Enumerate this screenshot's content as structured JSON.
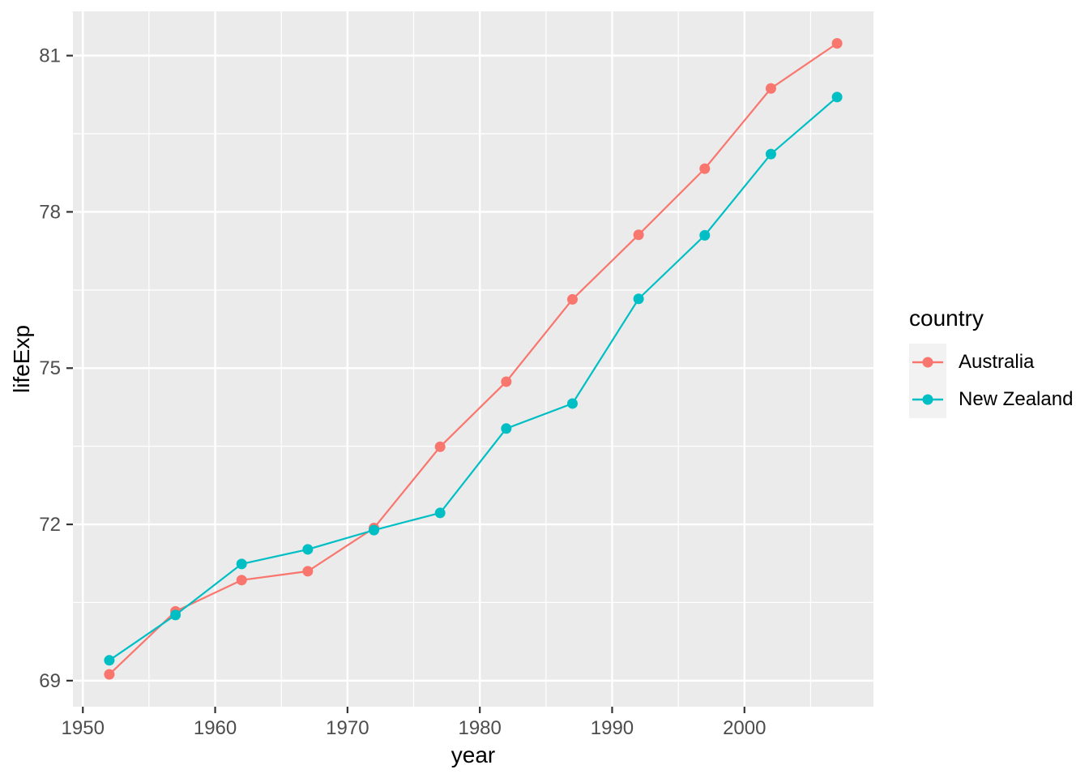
{
  "chart_data": {
    "type": "line",
    "title": "",
    "xlabel": "year",
    "ylabel": "lifeExp",
    "x": [
      1952,
      1957,
      1962,
      1967,
      1972,
      1977,
      1982,
      1987,
      1992,
      1997,
      2002,
      2007
    ],
    "series": [
      {
        "name": "Australia",
        "color": "#F8766D",
        "values": [
          69.12,
          70.33,
          70.93,
          71.1,
          71.93,
          73.49,
          74.74,
          76.32,
          77.56,
          78.83,
          80.37,
          81.235
        ]
      },
      {
        "name": "New Zealand",
        "color": "#00BFC4",
        "values": [
          69.39,
          70.26,
          71.24,
          71.52,
          71.89,
          72.22,
          73.84,
          74.32,
          76.33,
          77.55,
          79.11,
          80.204
        ]
      }
    ],
    "x_ticks": [
      1950,
      1960,
      1970,
      1980,
      1990,
      2000
    ],
    "y_ticks": [
      69,
      72,
      75,
      78,
      81
    ],
    "x_minor_ticks": [
      1955,
      1965,
      1975,
      1985,
      1995,
      2005
    ],
    "y_minor_ticks": [
      70.5,
      73.5,
      76.5,
      79.5
    ],
    "xlim": [
      1949.25,
      2009.75
    ],
    "ylim": [
      68.5,
      81.85
    ],
    "grid": true,
    "legend": {
      "title": "country",
      "position": "right"
    },
    "colors": {
      "panel_background": "#EBEBEB",
      "grid": "#FFFFFF",
      "tick_marks": "#333333",
      "tick_labels": "#4D4D4D",
      "axis_titles": "#000000",
      "legend_key_background": "#F2F2F2"
    }
  }
}
